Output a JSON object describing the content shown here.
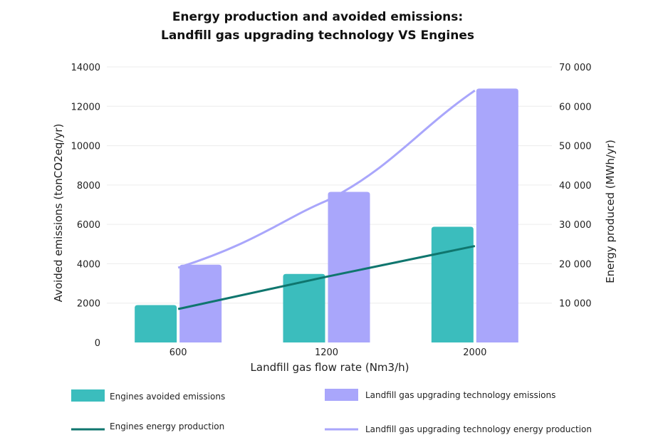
{
  "chart_data": {
    "type": "bar",
    "title_line1": "Energy production and avoided emissions:",
    "title_line2": "Landfill gas upgrading technology VS Engines",
    "xlabel": "Landfill gas flow rate (Nm3/h)",
    "ylabel": "Avoided emissions (tonCO2eq/yr)",
    "y2label": "Energy produced (MWh/yr)",
    "categories": [
      "600",
      "1200",
      "2000"
    ],
    "ylim": [
      0,
      14000
    ],
    "y2lim": [
      0,
      70000
    ],
    "yticks": [
      0,
      2000,
      4000,
      6000,
      8000,
      10000,
      12000,
      14000
    ],
    "yticklabels": [
      "0",
      "2000",
      "4000",
      "6000",
      "8000",
      "10000",
      "12000",
      "14000"
    ],
    "y2ticks": [
      10000,
      20000,
      30000,
      40000,
      50000,
      60000,
      70000
    ],
    "y2ticklabels": [
      "10 000",
      "20 000",
      "30 000",
      "40 000",
      "50 000",
      "60 000",
      "70 000"
    ],
    "grid": true,
    "bar_series": [
      {
        "name": "Engines avoided emissions",
        "color": "#3bbdbd",
        "values": [
          1900,
          3480,
          5880
        ]
      },
      {
        "name": "Landfill gas upgrading technology emissions",
        "color": "#a9a6fb",
        "values": [
          3950,
          7650,
          12900
        ]
      }
    ],
    "line_series": [
      {
        "name": "Engines energy production",
        "color": "#0f766e",
        "axis": "right",
        "values": [
          8500,
          16700,
          24500
        ]
      },
      {
        "name": "Landfill gas upgrading technology energy production",
        "color": "#a9a6fb",
        "axis": "right",
        "values": [
          19000,
          36000,
          64000
        ]
      }
    ]
  }
}
